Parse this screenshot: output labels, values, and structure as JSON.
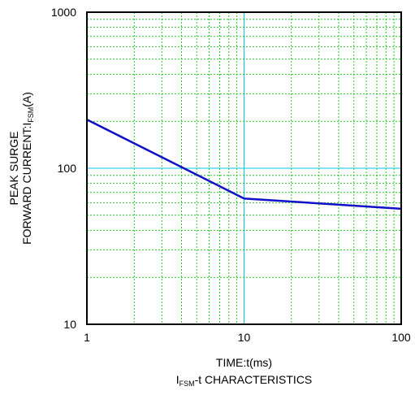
{
  "chart_data": {
    "type": "line",
    "x_scale": "log",
    "y_scale": "log",
    "xlim": [
      1,
      100
    ],
    "ylim": [
      10,
      1000
    ],
    "grid": true,
    "colors": {
      "major_grid": "#00c8e6",
      "minor_grid": "#22cc22",
      "series": "#1010c8",
      "frame": "#000000"
    },
    "x_ticks": [
      "1",
      "10",
      "100"
    ],
    "y_ticks": [
      "10",
      "100",
      "1000"
    ],
    "xlabel": "TIME:t(ms)",
    "ylabel": {
      "line1": "PEAK SURGE",
      "line2_prefix": "FORWARD CURRENT:I",
      "line2_sub": "FSM",
      "line2_suffix": "(A)"
    },
    "caption": {
      "prefix": "I",
      "sub": "FSM",
      "suffix": "-t CHARACTERISTICS"
    },
    "series": [
      {
        "x": [
          1,
          10,
          100
        ],
        "y": [
          205,
          64,
          55
        ]
      }
    ]
  }
}
